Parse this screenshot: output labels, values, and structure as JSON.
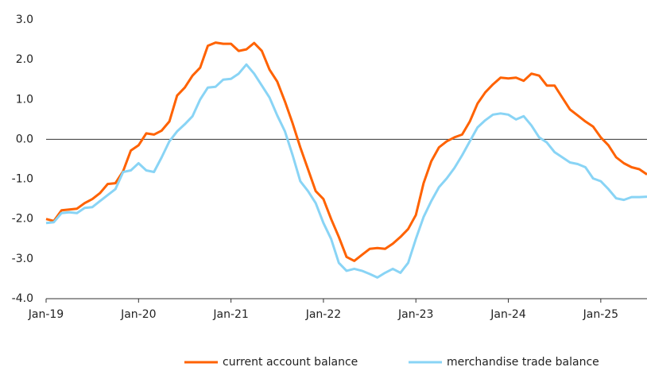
{
  "chart_data": {
    "type": "line",
    "categories": [
      "Jan-19",
      null,
      null,
      null,
      null,
      null,
      null,
      null,
      null,
      null,
      null,
      null,
      "Jan-20",
      null,
      null,
      null,
      null,
      null,
      null,
      null,
      null,
      null,
      null,
      null,
      "Jan-21",
      null,
      null,
      null,
      null,
      null,
      null,
      null,
      null,
      null,
      null,
      null,
      "Jan-22",
      null,
      null,
      null,
      null,
      null,
      null,
      null,
      null,
      null,
      null,
      null,
      "Jan-23",
      null,
      null,
      null,
      null,
      null,
      null,
      null,
      null,
      null,
      null,
      null,
      "Jan-24",
      null,
      null,
      null,
      null,
      null,
      null,
      null,
      null,
      null,
      null,
      null,
      "Jan-25",
      null,
      null,
      null,
      null,
      null,
      null
    ],
    "series": [
      {
        "name": "current account balance",
        "color": "#ff6200",
        "values": [
          -2.0,
          -2.05,
          -1.78,
          -1.76,
          -1.74,
          -1.6,
          -1.5,
          -1.35,
          -1.12,
          -1.1,
          -0.8,
          -0.28,
          -0.15,
          0.15,
          0.12,
          0.22,
          0.45,
          1.1,
          1.3,
          1.6,
          1.8,
          2.35,
          2.43,
          2.4,
          2.4,
          2.22,
          2.26,
          2.42,
          2.22,
          1.75,
          1.45,
          0.95,
          0.4,
          -0.2,
          -0.75,
          -1.3,
          -1.5,
          -2.0,
          -2.45,
          -2.95,
          -3.05,
          -2.9,
          -2.75,
          -2.73,
          -2.75,
          -2.62,
          -2.45,
          -2.25,
          -1.9,
          -1.1,
          -0.55,
          -0.2,
          -0.05,
          0.05,
          0.12,
          0.45,
          0.9,
          1.18,
          1.38,
          1.55,
          1.53,
          1.55,
          1.47,
          1.65,
          1.6,
          1.35,
          1.35,
          1.05,
          0.75,
          0.6,
          0.45,
          0.32,
          0.05,
          -0.15,
          -0.45,
          -0.6,
          -0.7,
          -0.75,
          -0.88
        ]
      },
      {
        "name": "merchandise trade balance",
        "color": "#89d4f5",
        "values": [
          -2.1,
          -2.08,
          -1.85,
          -1.83,
          -1.85,
          -1.72,
          -1.7,
          -1.55,
          -1.4,
          -1.25,
          -0.82,
          -0.78,
          -0.6,
          -0.78,
          -0.82,
          -0.45,
          -0.05,
          0.2,
          0.38,
          0.58,
          1.0,
          1.3,
          1.32,
          1.5,
          1.52,
          1.65,
          1.88,
          1.65,
          1.35,
          1.05,
          0.6,
          0.2,
          -0.4,
          -1.05,
          -1.3,
          -1.6,
          -2.1,
          -2.5,
          -3.1,
          -3.3,
          -3.25,
          -3.3,
          -3.38,
          -3.47,
          -3.35,
          -3.25,
          -3.35,
          -3.1,
          -2.5,
          -1.95,
          -1.55,
          -1.2,
          -0.98,
          -0.72,
          -0.4,
          -0.05,
          0.3,
          0.48,
          0.62,
          0.65,
          0.62,
          0.5,
          0.58,
          0.35,
          0.05,
          -0.08,
          -0.32,
          -0.45,
          -0.58,
          -0.62,
          -0.7,
          -0.98,
          -1.05,
          -1.25,
          -1.48,
          -1.52,
          -1.45,
          -1.45,
          -1.44
        ]
      }
    ],
    "ylim": [
      -4,
      3
    ],
    "yticks": [
      {
        "value": -4,
        "label": "-4.0"
      },
      {
        "value": -3,
        "label": "-3.0"
      },
      {
        "value": -2,
        "label": "-2.0"
      },
      {
        "value": -1,
        "label": "-1.0"
      },
      {
        "value": 0,
        "label": "0.0"
      },
      {
        "value": 1,
        "label": "1.0"
      },
      {
        "value": 2,
        "label": "2.0"
      },
      {
        "value": 3,
        "label": "3.0"
      }
    ],
    "legend": "bottom"
  }
}
